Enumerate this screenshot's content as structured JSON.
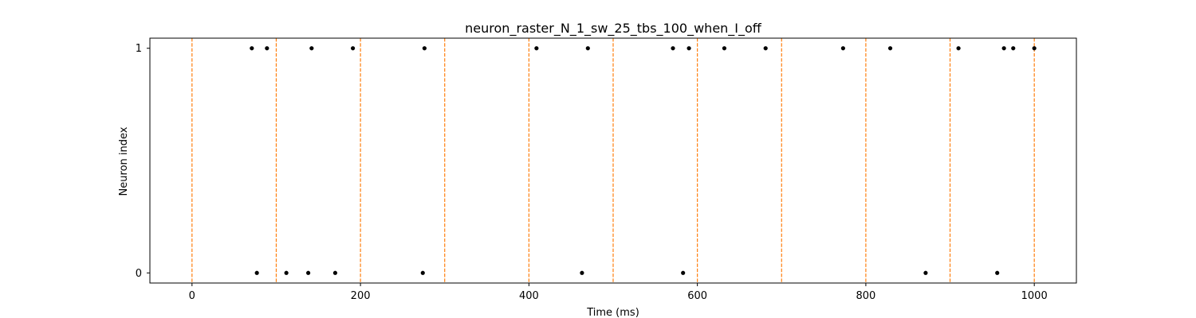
{
  "chart_data": {
    "type": "scatter",
    "title": "neuron_raster_N_1_sw_25_tbs_100_when_I_off",
    "xlabel": "Time (ms)",
    "ylabel": "Neuron index",
    "xlim": [
      -50,
      1050
    ],
    "ylim": [
      -0.045,
      1.045
    ],
    "x_ticks": [
      0,
      200,
      400,
      600,
      800,
      1000
    ],
    "x_tick_labels": [
      "0",
      "200",
      "400",
      "600",
      "800",
      "1000"
    ],
    "y_ticks": [
      0,
      1
    ],
    "y_tick_labels": [
      "0",
      "1"
    ],
    "grid": false,
    "vertical_lines": {
      "x": [
        0,
        100,
        200,
        300,
        400,
        500,
        600,
        700,
        800,
        900,
        1000
      ],
      "color": "#ff7f0e",
      "style": "dashed"
    },
    "point_color": "#000000",
    "series": [
      {
        "neuron": 1,
        "x": [
          71,
          89,
          142,
          191,
          276,
          409,
          470,
          571,
          590,
          632,
          681,
          773,
          829,
          910,
          964,
          975,
          1000
        ]
      },
      {
        "neuron": 0,
        "x": [
          77,
          112,
          138,
          170,
          274,
          463,
          583,
          871,
          956
        ]
      }
    ]
  }
}
